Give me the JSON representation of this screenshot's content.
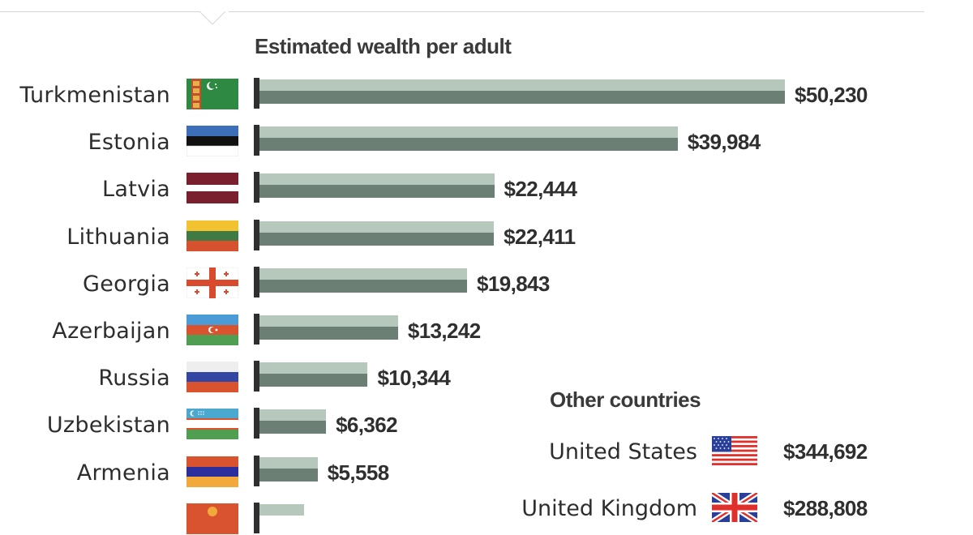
{
  "chart_data": {
    "type": "bar",
    "orientation": "horizontal",
    "title": "Estimated wealth per adult",
    "categories": [
      "Turkmenistan",
      "Estonia",
      "Latvia",
      "Lithuania",
      "Georgia",
      "Azerbaijan",
      "Russia",
      "Uzbekistan",
      "Armenia"
    ],
    "values": [
      50230,
      39984,
      22444,
      22411,
      19843,
      13242,
      10344,
      6362,
      5558
    ],
    "value_labels": [
      "$50,230",
      "$39,984",
      "$22,444",
      "$22,411",
      "$19,843",
      "$13,242",
      "$10,344",
      "$6,362",
      "$5,558"
    ],
    "flag_icons": [
      "turkmenistan-flag-icon",
      "estonia-flag-icon",
      "latvia-flag-icon",
      "lithuania-flag-icon",
      "georgia-flag-icon",
      "azerbaijan-flag-icon",
      "russia-flag-icon",
      "uzbekistan-flag-icon",
      "armenia-flag-icon"
    ],
    "xlim": [
      0,
      50230
    ],
    "grid": false,
    "colors": {
      "bar_light": "#b6c7bb",
      "bar_dark": "#6b7f75"
    }
  },
  "other_countries": {
    "title": "Other countries",
    "items": [
      {
        "name": "United States",
        "value": "$344,692",
        "flag_icon": "usa-flag-icon"
      },
      {
        "name": "United Kingdom",
        "value": "$288,808",
        "flag_icon": "uk-flag-icon"
      }
    ]
  }
}
